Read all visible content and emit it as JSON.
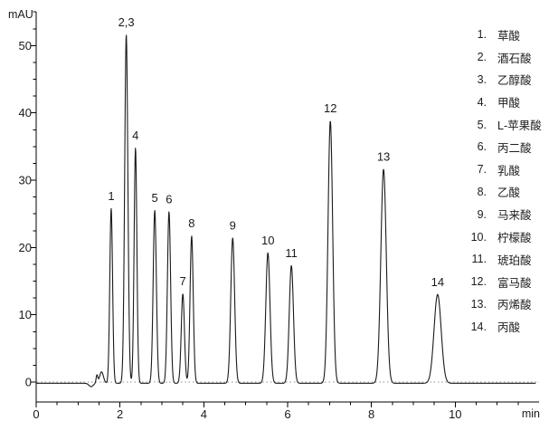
{
  "figure": {
    "background_color": "#ffffff",
    "trace_color": "#1a1a1a",
    "axis_color": "#000000",
    "zero_line_color": "#909090",
    "text_color": "#1a1a1a"
  },
  "chart_data": {
    "type": "line",
    "kind": "HPLC chromatogram",
    "title": "",
    "y_axis": {
      "label": "mAU",
      "min": 0,
      "max": 55,
      "major_ticks": [
        0,
        10,
        20,
        30,
        40,
        50
      ],
      "minor_step": 2.5
    },
    "x_axis": {
      "label": "min",
      "min": 0,
      "max": 11.9,
      "major_ticks": [
        0,
        2,
        4,
        6,
        8,
        10
      ],
      "minor_step": 0.5
    },
    "zero_gridline": "dotted",
    "peaks": [
      {
        "label": "1",
        "compound": "草酸",
        "rt_min": 1.79,
        "height_mAU": 26.0,
        "sigma_min": 0.033
      },
      {
        "label": "2,3",
        "compound": "酒石酸 + 乙醇酸",
        "rt_min": 2.15,
        "height_mAU": 51.8,
        "sigma_min": 0.038
      },
      {
        "label": "4",
        "compound": "甲酸",
        "rt_min": 2.37,
        "height_mAU": 35.0,
        "sigma_min": 0.033
      },
      {
        "label": "5",
        "compound": "L-苹果酸",
        "rt_min": 2.83,
        "height_mAU": 25.7,
        "sigma_min": 0.038
      },
      {
        "label": "6",
        "compound": "丙二酸",
        "rt_min": 3.17,
        "height_mAU": 25.5,
        "sigma_min": 0.038
      },
      {
        "label": "7",
        "compound": "乳酸",
        "rt_min": 3.5,
        "height_mAU": 13.3,
        "sigma_min": 0.038
      },
      {
        "label": "8",
        "compound": "乙酸",
        "rt_min": 3.71,
        "height_mAU": 21.9,
        "sigma_min": 0.038
      },
      {
        "label": "9",
        "compound": "马来酸",
        "rt_min": 4.69,
        "height_mAU": 21.6,
        "sigma_min": 0.046
      },
      {
        "label": "10",
        "compound": "柠檬酸",
        "rt_min": 5.53,
        "height_mAU": 19.4,
        "sigma_min": 0.05
      },
      {
        "label": "11",
        "compound": "琥珀酸",
        "rt_min": 6.09,
        "height_mAU": 17.5,
        "sigma_min": 0.05
      },
      {
        "label": "12",
        "compound": "富马酸",
        "rt_min": 7.02,
        "height_mAU": 39.0,
        "sigma_min": 0.055
      },
      {
        "label": "13",
        "compound": "丙烯酸",
        "rt_min": 8.29,
        "height_mAU": 31.8,
        "sigma_min": 0.065
      },
      {
        "label": "14",
        "compound": "丙酸",
        "rt_min": 9.58,
        "height_mAU": 13.2,
        "sigma_min": 0.085
      }
    ],
    "baseline_offset_mAU": -0.18,
    "baseline_features": [
      {
        "rt_min": 1.31,
        "height_mAU": -0.5,
        "sigma_min": 0.05
      },
      {
        "rt_min": 1.45,
        "height_mAU": 1.2,
        "sigma_min": 0.02
      },
      {
        "rt_min": 1.56,
        "height_mAU": 1.7,
        "sigma_min": 0.045
      }
    ]
  },
  "legend": {
    "items": [
      {
        "num": "1.",
        "name": "草酸"
      },
      {
        "num": "2.",
        "name": "酒石酸"
      },
      {
        "num": "3.",
        "name": "乙醇酸"
      },
      {
        "num": "4.",
        "name": "甲酸"
      },
      {
        "num": "5.",
        "name": "L-苹果酸"
      },
      {
        "num": "6.",
        "name": "丙二酸"
      },
      {
        "num": "7.",
        "name": "乳酸"
      },
      {
        "num": "8.",
        "name": "乙酸"
      },
      {
        "num": "9.",
        "name": "马来酸"
      },
      {
        "num": "10.",
        "name": "柠檬酸"
      },
      {
        "num": "11.",
        "name": "琥珀酸"
      },
      {
        "num": "12.",
        "name": "富马酸"
      },
      {
        "num": "13.",
        "name": "丙烯酸"
      },
      {
        "num": "14.",
        "name": "丙酸"
      }
    ]
  }
}
